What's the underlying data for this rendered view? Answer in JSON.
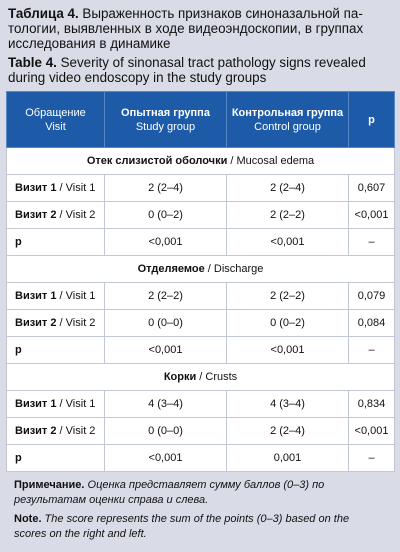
{
  "caption_ru": {
    "label": "Таблица 4.",
    "text": " Выраженность признаков синоназальной па-тологии, выявленных в ходе видеоэндоскопии, в группах исследования в динамике"
  },
  "caption_en": {
    "label": "Table 4.",
    "text": " Severity of sinonasal tract pathology signs revealed during video endoscopy in the study groups"
  },
  "header": {
    "col1_ru": "Обращение",
    "col1_en": "Visit",
    "col2_ru": "Опытная группа",
    "col2_en": "Study group",
    "col3_ru": "Контрольная группа",
    "col3_en": "Control group",
    "col4": "p"
  },
  "colors": {
    "header_bg": "#1d5aa8",
    "page_bg": "#d9dce6",
    "border": "#c2c7d6"
  },
  "sections": [
    {
      "title_ru": "Отек слизистой оболочки",
      "title_en": " / Mucosal edema",
      "rows": [
        {
          "label_ru": "Визит 1",
          "label_en": " / Visit 1",
          "study": "2 (2–4)",
          "control": "2 (2–4)",
          "p": "0,607"
        },
        {
          "label_ru": "Визит 2",
          "label_en": " / Visit 2",
          "study": "0 (0–2)",
          "control": "2 (2–2)",
          "p": "<0,001"
        },
        {
          "label_ru": "p",
          "label_en": "",
          "study": "<0,001",
          "control": "<0,001",
          "p": "–"
        }
      ]
    },
    {
      "title_ru": "Отделяемое",
      "title_en": " / Discharge",
      "rows": [
        {
          "label_ru": "Визит 1",
          "label_en": " / Visit 1",
          "study": "2 (2–2)",
          "control": "2 (2–2)",
          "p": "0,079"
        },
        {
          "label_ru": "Визит 2",
          "label_en": " / Visit 2",
          "study": "0 (0–0)",
          "control": "0 (0–2)",
          "p": "0,084"
        },
        {
          "label_ru": "p",
          "label_en": "",
          "study": "<0,001",
          "control": "<0,001",
          "p": "–"
        }
      ]
    },
    {
      "title_ru": "Корки",
      "title_en": " / Crusts",
      "rows": [
        {
          "label_ru": "Визит 1",
          "label_en": " / Visit 1",
          "study": "4 (3–4)",
          "control": "4 (3–4)",
          "p": "0,834"
        },
        {
          "label_ru": "Визит 2",
          "label_en": " / Visit 2",
          "study": "0 (0–0)",
          "control": "2 (2–4)",
          "p": "<0,001"
        },
        {
          "label_ru": "p",
          "label_en": "",
          "study": "<0,001",
          "control": "0,001",
          "p": "–"
        }
      ]
    }
  ],
  "note_ru": {
    "label": "Примечание.",
    "text": " Оценка представляет сумму баллов (0–3) по результатам оценки справа и слева."
  },
  "note_en": {
    "label": "Note.",
    "text": " The score represents the sum of the points (0–3) based on the scores on the right and left."
  }
}
